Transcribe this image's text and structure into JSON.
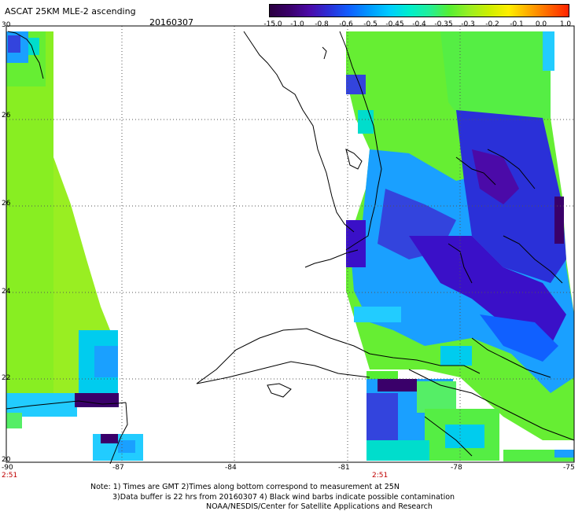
{
  "header": {
    "title": "ASCAT 25KM MLE-2 ascending",
    "date": "20160307"
  },
  "colorbar": {
    "colors": [
      "#2a0040",
      "#3a006a",
      "#4b0aa8",
      "#2a30d8",
      "#1060ff",
      "#0099ff",
      "#00ccff",
      "#00eecc",
      "#22ee99",
      "#55ee33",
      "#99ee22",
      "#ccee00",
      "#ffee00",
      "#ffaa00",
      "#ff6600",
      "#ff2200"
    ],
    "labels": [
      "-15.0",
      "-1.0",
      "-0.8",
      "-0.6",
      "-0.5",
      "-0.45",
      "-0.4",
      "-0.35",
      "-0.3",
      "-0.2",
      "-0.1",
      "0.0",
      "1.0"
    ]
  },
  "axes": {
    "y_ticks": [
      "30",
      "26",
      "26",
      "24",
      "22",
      "20"
    ],
    "x_ticks": [
      "-90",
      "-87",
      "-84",
      "-81",
      "-78",
      "-75"
    ]
  },
  "times": [
    "2:51",
    "2:51"
  ],
  "notes": [
    "Note: 1) Times are GMT 2)Times along bottom correspond to measurement at 25N",
    "3)Data buffer is 22 hrs from 20160307 4) Black wind barbs indicate possible contamination",
    "NOAA/NESDIS/Center for Satellite Applications and Research"
  ]
}
